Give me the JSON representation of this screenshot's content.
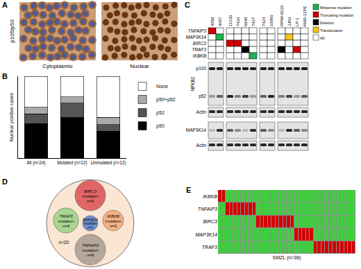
{
  "panel_labels": [
    "A",
    "B",
    "C",
    "D",
    "E"
  ],
  "panel_a": {
    "stain": "p105/p50",
    "images": [
      "Cytoplasmic",
      "Nuclear"
    ]
  },
  "chart_data": [
    {
      "type": "bar",
      "stacked": true,
      "ylabel": "Nuclear positive cases",
      "categories": [
        "All (n=24)",
        "Mutated (n=12)",
        "Unmutated (n=12)"
      ],
      "series": [
        {
          "name": "p50",
          "color": "#000000",
          "values": [
            42,
            50,
            33
          ]
        },
        {
          "name": "p52",
          "color": "#555555",
          "values": [
            12,
            17,
            8
          ]
        },
        {
          "name": "p50+p52",
          "color": "#aaaaaa",
          "values": [
            8,
            8,
            9
          ]
        },
        {
          "name": "None",
          "color": "#ffffff",
          "values": [
            38,
            25,
            50
          ]
        }
      ],
      "ylim": [
        0,
        100
      ],
      "tick_labels": "x",
      "legend": "right"
    },
    {
      "type": "heatmap",
      "xlabel": "SMZL (n=36)",
      "rows": [
        "IKBKB",
        "TNFAIP3",
        "BIRC3",
        "MAP3K14",
        "TRAF3"
      ],
      "cells": [
        [
          1,
          1,
          0,
          0,
          0,
          0,
          0,
          0,
          0,
          0,
          0,
          0,
          0,
          0,
          0,
          0,
          0,
          0,
          0,
          0,
          0,
          0,
          0,
          0,
          0,
          0,
          0,
          0,
          0,
          0,
          0,
          0,
          0,
          0,
          0,
          0
        ],
        [
          0,
          0,
          1,
          1,
          1,
          1,
          1,
          1,
          1,
          1,
          0,
          0,
          0,
          0,
          0,
          0,
          0,
          0,
          0,
          0,
          0,
          0,
          0,
          0,
          0,
          0,
          0,
          0,
          0,
          0,
          0,
          0,
          0,
          0,
          0,
          0
        ],
        [
          0,
          0,
          0,
          0,
          0,
          0,
          0,
          0,
          0,
          0,
          1,
          1,
          1,
          1,
          1,
          1,
          1,
          1,
          1,
          1,
          0,
          0,
          0,
          0,
          0,
          0,
          0,
          0,
          0,
          0,
          0,
          0,
          0,
          0,
          0,
          0
        ],
        [
          0,
          0,
          0,
          0,
          0,
          0,
          0,
          0,
          0,
          0,
          0,
          0,
          0,
          0,
          0,
          0,
          0,
          0,
          0,
          0,
          1,
          1,
          1,
          1,
          1,
          0,
          0,
          0,
          0,
          0,
          0,
          0,
          0,
          0,
          0,
          0
        ],
        [
          0,
          0,
          0,
          0,
          0,
          0,
          0,
          0,
          0,
          0,
          0,
          0,
          0,
          0,
          0,
          0,
          0,
          0,
          0,
          0,
          0,
          0,
          0,
          0,
          0,
          1,
          1,
          1,
          1,
          1,
          1,
          1,
          1,
          1,
          1,
          1
        ]
      ],
      "colors": [
        "#3fcf3f",
        "#d40000"
      ],
      "tick_labels": "y"
    }
  ],
  "panel_c": {
    "sample_groups": [
      [
        "4689",
        "4687"
      ],
      [
        "11230",
        "7426",
        "5940",
        "7427"
      ],
      [
        "7424",
        "10056"
      ],
      [
        "RPMI-8226",
        "JJN3",
        "LP-1",
        "KMS-12PE"
      ]
    ],
    "genes": [
      "TNFAIP3",
      "MAP3K14",
      "BIRC3",
      "TRAF3",
      "IKBKB"
    ],
    "cells": [
      [
        1,
        4,
        4,
        4,
        4,
        4,
        4,
        4,
        4,
        4,
        4,
        4
      ],
      [
        4,
        0,
        4,
        4,
        4,
        4,
        4,
        4,
        4,
        3,
        4,
        4
      ],
      [
        4,
        4,
        1,
        1,
        4,
        4,
        4,
        4,
        4,
        4,
        4,
        4
      ],
      [
        4,
        4,
        4,
        4,
        2,
        4,
        4,
        4,
        2,
        4,
        1,
        4
      ],
      [
        4,
        4,
        4,
        4,
        4,
        0,
        4,
        4,
        4,
        4,
        4,
        4
      ]
    ],
    "legend": [
      {
        "label": "Missense mutation",
        "color": "#22b14c"
      },
      {
        "label": "Truncating mutation",
        "color": "#d40000"
      },
      {
        "label": "Deletion",
        "color": "#000000"
      },
      {
        "label": "Translocation",
        "color": "#f5c518"
      },
      {
        "label": "Wt",
        "color": "#ffffff"
      }
    ],
    "blot_labels": {
      "nfkb2": "NFKB2",
      "p100": "p100",
      "p52": "p52",
      "actin": "Actin",
      "map3k14": "MAP3K14"
    }
  },
  "panel_d": {
    "outer_count": "n=20",
    "circles": [
      {
        "gene": "BIRC3",
        "word": "mutation",
        "count": "n=6",
        "color": "#e06666"
      },
      {
        "gene": "TRAF3",
        "word": "mutation",
        "count": "n=4",
        "color": "#a8d58f"
      },
      {
        "gene": "MAP3K14",
        "word": "mutation",
        "count": "n=1",
        "color": "#6f8fcf"
      },
      {
        "gene": "IKBKB",
        "word": "mutation",
        "count": "n=3",
        "color": "#f4b183"
      },
      {
        "gene": "TNFAIP3",
        "word": "mutation",
        "count": "n=8",
        "color": "#b5a79c"
      }
    ]
  }
}
